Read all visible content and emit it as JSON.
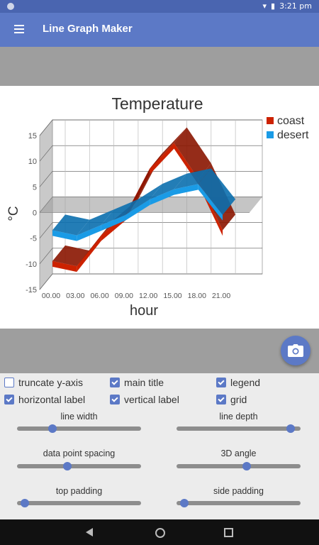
{
  "status_bar": {
    "time": "3:21 pm"
  },
  "app_bar": {
    "title": "Line Graph Maker"
  },
  "chart_data": {
    "type": "line",
    "title": "Temperature",
    "xlabel": "hour",
    "ylabel": "°C",
    "categories": [
      "00.00",
      "03.00",
      "06.00",
      "09.00",
      "12.00",
      "15.00",
      "18.00",
      "21.00"
    ],
    "y_ticks": [
      "15",
      "10",
      "5",
      "0",
      "-5",
      "-10",
      "-15"
    ],
    "ylim": [
      -15,
      15
    ],
    "three_d": true,
    "grid": true,
    "legend_position": "top-right",
    "series": [
      {
        "name": "coast",
        "color": "#cc2200",
        "values": [
          -10,
          -11,
          -5,
          -1,
          8,
          13,
          6,
          -4
        ]
      },
      {
        "name": "desert",
        "color": "#1a9be6",
        "values": [
          -4,
          -5,
          -3,
          -1,
          2,
          4,
          5,
          -1
        ]
      }
    ]
  },
  "checkboxes": [
    {
      "label": "truncate y-axis",
      "checked": false
    },
    {
      "label": "main title",
      "checked": true
    },
    {
      "label": "legend",
      "checked": true
    },
    {
      "label": "horizontal label",
      "checked": true
    },
    {
      "label": "vertical label",
      "checked": true
    },
    {
      "label": "grid",
      "checked": true
    }
  ],
  "sliders": [
    {
      "label": "line width",
      "value": 0.27
    },
    {
      "label": "line depth",
      "value": 0.95
    },
    {
      "label": "data point spacing",
      "value": 0.4
    },
    {
      "label": "3D angle",
      "value": 0.57
    },
    {
      "label": "top padding",
      "value": 0.03
    },
    {
      "label": "side padding",
      "value": 0.03
    }
  ]
}
